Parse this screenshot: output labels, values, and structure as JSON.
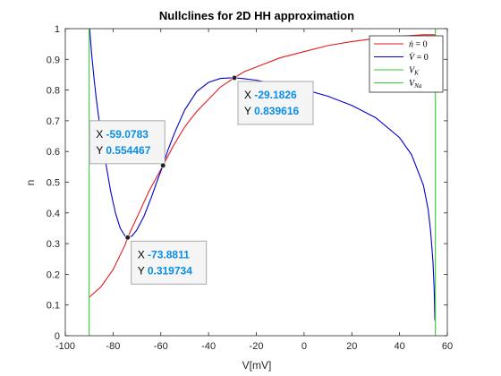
{
  "chart_data": {
    "type": "line",
    "title": "Nullclines for 2D HH approximation",
    "xlabel": "V[mV]",
    "ylabel": "n",
    "xlim": [
      -100,
      60
    ],
    "ylim": [
      0,
      1
    ],
    "xticks": [
      -100,
      -80,
      -60,
      -40,
      -20,
      0,
      20,
      40,
      60
    ],
    "yticks": [
      0,
      0.1,
      0.2,
      0.3,
      0.4,
      0.5,
      0.6,
      0.7,
      0.8,
      0.9,
      1
    ],
    "legend_placement": "top-right",
    "grid": false,
    "series": [
      {
        "name": "ṅ = 0",
        "color": "#e31a1c",
        "points": [
          [
            -90,
            0.125
          ],
          [
            -85,
            0.16
          ],
          [
            -80,
            0.215
          ],
          [
            -75,
            0.295
          ],
          [
            -73.9,
            0.32
          ],
          [
            -70,
            0.385
          ],
          [
            -65,
            0.47
          ],
          [
            -59.1,
            0.554
          ],
          [
            -55,
            0.615
          ],
          [
            -50,
            0.68
          ],
          [
            -45,
            0.73
          ],
          [
            -40,
            0.77
          ],
          [
            -35,
            0.81
          ],
          [
            -29.2,
            0.84
          ],
          [
            -25,
            0.86
          ],
          [
            -20,
            0.875
          ],
          [
            -10,
            0.905
          ],
          [
            0,
            0.925
          ],
          [
            10,
            0.945
          ],
          [
            20,
            0.958
          ],
          [
            30,
            0.968
          ],
          [
            40,
            0.975
          ],
          [
            50,
            0.98
          ],
          [
            55,
            0.98
          ]
        ]
      },
      {
        "name": "V̇ = 0",
        "color": "#0000cc",
        "points": [
          [
            -89.8,
            1.0
          ],
          [
            -89,
            0.92
          ],
          [
            -88,
            0.84
          ],
          [
            -87,
            0.77
          ],
          [
            -86,
            0.71
          ],
          [
            -85,
            0.655
          ],
          [
            -83,
            0.56
          ],
          [
            -81,
            0.47
          ],
          [
            -79,
            0.4
          ],
          [
            -77,
            0.35
          ],
          [
            -75,
            0.325
          ],
          [
            -73.9,
            0.32
          ],
          [
            -72,
            0.325
          ],
          [
            -70,
            0.345
          ],
          [
            -67,
            0.39
          ],
          [
            -64,
            0.45
          ],
          [
            -61,
            0.515
          ],
          [
            -59.1,
            0.554
          ],
          [
            -57,
            0.605
          ],
          [
            -54,
            0.665
          ],
          [
            -50,
            0.735
          ],
          [
            -45,
            0.795
          ],
          [
            -40,
            0.825
          ],
          [
            -35,
            0.838
          ],
          [
            -29.2,
            0.84
          ],
          [
            -25,
            0.837
          ],
          [
            -20,
            0.832
          ],
          [
            -10,
            0.818
          ],
          [
            0,
            0.802
          ],
          [
            10,
            0.78
          ],
          [
            20,
            0.75
          ],
          [
            30,
            0.71
          ],
          [
            40,
            0.645
          ],
          [
            45,
            0.59
          ],
          [
            50,
            0.49
          ],
          [
            52,
            0.41
          ],
          [
            53,
            0.34
          ],
          [
            54,
            0.24
          ],
          [
            54.5,
            0.15
          ],
          [
            54.8,
            0.05
          ]
        ]
      },
      {
        "name": "V_K",
        "color": "#33cc33",
        "points": [
          [
            -90,
            0
          ],
          [
            -90,
            1
          ]
        ]
      },
      {
        "name": "V_Na",
        "color": "#33cc33",
        "points": [
          [
            55,
            0
          ],
          [
            55,
            1
          ]
        ]
      }
    ],
    "legend": [
      {
        "label_main": "ṅ",
        "label_rest": " = 0",
        "color": "#e31a1c"
      },
      {
        "label_main": "V̇",
        "label_rest": " = 0",
        "color": "#0000cc"
      },
      {
        "label_main": "V",
        "label_sub": "K",
        "color": "#33cc33"
      },
      {
        "label_main": "V",
        "label_sub": "Na",
        "color": "#33cc33"
      }
    ],
    "datatips": [
      {
        "x": -59.0783,
        "y": 0.554467,
        "x_label": "X",
        "y_label": "Y",
        "x_text": "-59.0783",
        "y_text": "0.554467",
        "box_position": "upper-left"
      },
      {
        "x": -29.1826,
        "y": 0.839616,
        "x_label": "X",
        "y_label": "Y",
        "x_text": "-29.1826",
        "y_text": "0.839616",
        "box_position": "lower-right"
      },
      {
        "x": -73.8811,
        "y": 0.319734,
        "x_label": "X",
        "y_label": "Y",
        "x_text": "-73.8811",
        "y_text": "0.319734",
        "box_position": "lower-right"
      }
    ]
  }
}
